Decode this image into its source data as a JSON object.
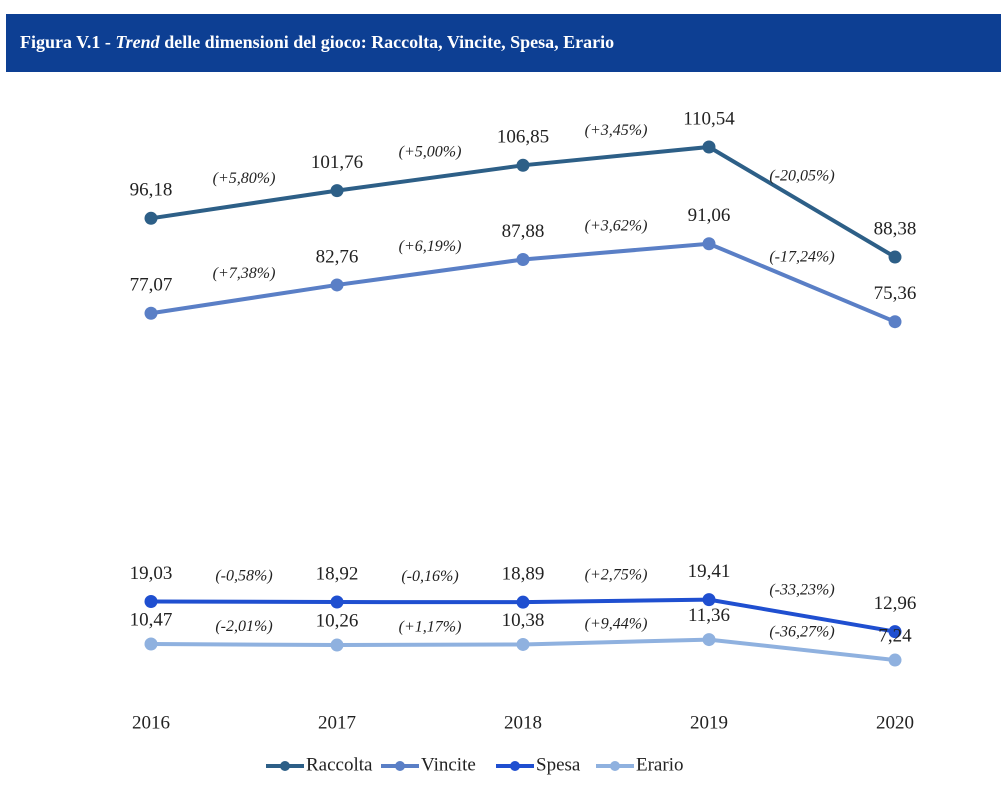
{
  "chart_data": {
    "type": "line",
    "title": [
      "Figura V.1 - ",
      "Trend",
      " delle dimensioni del gioco: Raccolta, Vincite, Spesa, Erario"
    ],
    "categories": [
      "2016",
      "2017",
      "2018",
      "2019",
      "2020"
    ],
    "ylim": [
      0,
      120
    ],
    "series": [
      {
        "name": "Raccolta",
        "color": "#2d5f87",
        "values": [
          96.18,
          101.76,
          106.85,
          110.54,
          88.38
        ],
        "value_labels": [
          "96,18",
          "101,76",
          "106,85",
          "110,54",
          "88,38"
        ],
        "changes": [
          "(+5,80%)",
          "(+5,00%)",
          "(+3,45%)",
          "(-20,05%)"
        ]
      },
      {
        "name": "Vincite",
        "color": "#5a7fc6",
        "values": [
          77.07,
          82.76,
          87.88,
          91.06,
          75.36
        ],
        "value_labels": [
          "77,07",
          "82,76",
          "87,88",
          "91,06",
          "75,36"
        ],
        "changes": [
          "(+7,38%)",
          "(+6,19%)",
          "(+3,62%)",
          "(-17,24%)"
        ]
      },
      {
        "name": "Spesa",
        "color": "#1f4fd0",
        "values": [
          19.03,
          18.92,
          18.89,
          19.41,
          12.96
        ],
        "value_labels": [
          "19,03",
          "18,92",
          "18,89",
          "19,41",
          "12,96"
        ],
        "changes": [
          "(-0,58%)",
          "(-0,16%)",
          "(+2,75%)",
          "(-33,23%)"
        ]
      },
      {
        "name": "Erario",
        "color": "#8fb1df",
        "values": [
          10.47,
          10.26,
          10.38,
          11.36,
          7.24
        ],
        "value_labels": [
          "10,47",
          "10,26",
          "10,38",
          "11,36",
          "7,24"
        ],
        "changes": [
          "(-2,01%)",
          "(+1,17%)",
          "(+9,44%)",
          "(-36,27%)"
        ]
      }
    ]
  }
}
